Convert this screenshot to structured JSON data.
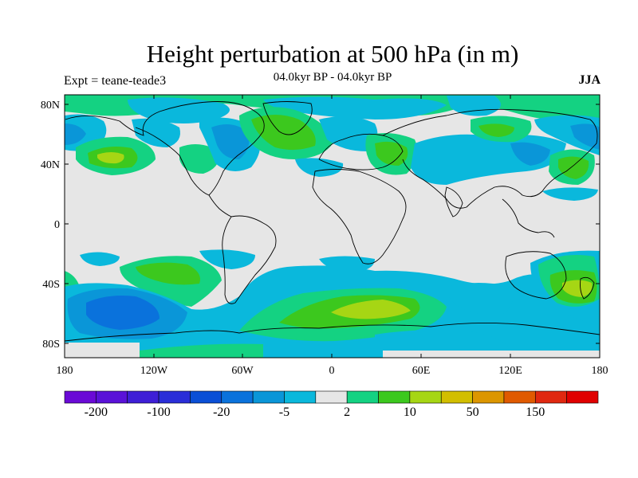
{
  "title": "Height perturbation at 500 hPa (in m)",
  "subtitle": "04.0kyr BP - 04.0kyr BP",
  "experiment": "Expt = teane-teade3",
  "season": "JJA",
  "map": {
    "lat_ticks": [
      "80N",
      "40N",
      "0",
      "40S",
      "80S"
    ],
    "lon_ticks": [
      "180",
      "120W",
      "60W",
      "0",
      "60E",
      "120E",
      "180"
    ]
  },
  "colorbar": {
    "colors": [
      "#6a0ad6",
      "#5a12d8",
      "#3e1fd6",
      "#2a2ed8",
      "#0a4fd6",
      "#0a72dc",
      "#0a96d8",
      "#0ab8dc",
      "#e6e6e6",
      "#14d282",
      "#3cc81e",
      "#a6d614",
      "#d2be00",
      "#dc9600",
      "#e05a00",
      "#e02810",
      "#e00000"
    ],
    "labels": [
      "-200",
      "-100",
      "-20",
      "-5",
      "2",
      "10",
      "50",
      "150"
    ]
  },
  "colors": {
    "neutral": "#e6e6e6",
    "cyan": "#0ab8dc",
    "light_blue": "#0a96d8",
    "mid_blue": "#0a72dc",
    "teal_green": "#14d282",
    "green": "#3cc81e",
    "yellow_green": "#a6d614"
  }
}
